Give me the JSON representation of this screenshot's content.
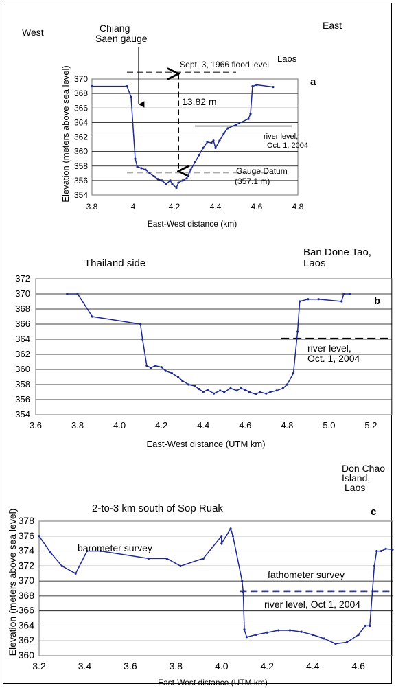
{
  "chart_data": [
    {
      "panel_letter": "a",
      "type": "line",
      "xlabel": "East-West distance (km)",
      "ylabel": "Elevation (meters above sea level)",
      "xlim": [
        3.8,
        4.8
      ],
      "ylim": [
        354,
        370
      ],
      "xticks": [
        "3.8",
        "4",
        "4.2",
        "4.4",
        "4.6",
        "4.8"
      ],
      "yticks": [
        "354",
        "356",
        "358",
        "360",
        "362",
        "364",
        "366",
        "368",
        "370"
      ],
      "annotations": {
        "west": "West",
        "east": "East",
        "gauge": "Chiang\nSaen gauge",
        "flood": "Sept. 3, 1966 flood level",
        "laos": "Laos",
        "diff": "13.82 m",
        "river": "river level,\nOct. 1, 2004",
        "datum": "Gauge Datum\n(357.1 m)"
      },
      "reference_lines": {
        "flood_level": 370.9,
        "river_level": 363.5,
        "gauge_datum": 357.1
      },
      "series": [
        {
          "x": [
            3.8,
            3.97,
            3.99,
            4.01,
            4.02,
            4.04,
            4.06,
            4.08,
            4.1,
            4.12,
            4.14,
            4.16,
            4.18,
            4.19,
            4.21,
            4.22,
            4.24,
            4.26,
            4.28,
            4.3,
            4.32,
            4.34,
            4.36,
            4.38,
            4.39,
            4.4,
            4.42,
            4.44,
            4.46,
            4.5,
            4.56,
            4.57,
            4.58,
            4.6,
            4.68
          ],
          "y": [
            369.0,
            369.0,
            367.5,
            359.0,
            357.9,
            357.7,
            357.5,
            357.0,
            356.6,
            356.2,
            356.0,
            355.5,
            356.0,
            355.5,
            355.0,
            355.7,
            356.0,
            356.3,
            357.5,
            358.5,
            359.5,
            360.5,
            361.3,
            361.2,
            361.5,
            360.5,
            361.5,
            362.5,
            363.2,
            363.7,
            364.5,
            365.2,
            369.0,
            369.2,
            368.9
          ]
        }
      ]
    },
    {
      "panel_letter": "b",
      "type": "line",
      "xlabel": "East-West distance (UTM km)",
      "ylabel": "",
      "xlim": [
        3.6,
        5.3
      ],
      "ylim": [
        354,
        372
      ],
      "xticks": [
        "3.6",
        "3.8",
        "4.0",
        "4.2",
        "4.4",
        "4.6",
        "4.8",
        "5.0",
        "5.2"
      ],
      "yticks": [
        "354",
        "356",
        "358",
        "360",
        "362",
        "364",
        "366",
        "368",
        "370",
        "372"
      ],
      "annotations": {
        "thailand": "Thailand side",
        "bandone": "Ban Done Tao,\nLaos",
        "river": "river level,\nOct. 1, 2004"
      },
      "reference_lines": {
        "river_level": 364.1
      },
      "series": [
        {
          "x": [
            3.75,
            3.8,
            3.87,
            4.1,
            4.11,
            4.13,
            4.15,
            4.17,
            4.2,
            4.22,
            4.25,
            4.28,
            4.3,
            4.33,
            4.36,
            4.38,
            4.4,
            4.42,
            4.45,
            4.48,
            4.5,
            4.53,
            4.56,
            4.58,
            4.6,
            4.62,
            4.65,
            4.67,
            4.7,
            4.72,
            4.75,
            4.78,
            4.8,
            4.83,
            4.85,
            4.86,
            4.9,
            4.95,
            5.06,
            5.07,
            5.1
          ],
          "y": [
            370.0,
            370.0,
            367.0,
            366.0,
            364.0,
            360.5,
            360.2,
            360.5,
            360.3,
            359.8,
            359.5,
            359.0,
            358.5,
            358.0,
            357.8,
            357.4,
            357.0,
            357.3,
            356.8,
            357.2,
            357.0,
            357.5,
            357.2,
            357.5,
            357.3,
            357.0,
            356.7,
            357.0,
            356.8,
            357.0,
            357.2,
            357.5,
            358.0,
            359.5,
            365.0,
            369.0,
            369.3,
            369.3,
            369.0,
            370.0,
            370.0
          ]
        }
      ]
    },
    {
      "panel_letter": "c",
      "type": "line",
      "title": "2-to-3 km south of Sop Ruak",
      "xlabel": "East-West distance (UTM km)",
      "ylabel": "Elevation (meters above sea level)",
      "xlim": [
        3.2,
        4.75
      ],
      "ylim": [
        360,
        378
      ],
      "xticks": [
        "3.2",
        "3.4",
        "3.6",
        "3.8",
        "4.0",
        "4.2",
        "4.4",
        "4.6"
      ],
      "yticks": [
        "360",
        "362",
        "364",
        "366",
        "368",
        "370",
        "372",
        "374",
        "376",
        "378"
      ],
      "annotations": {
        "donchao": "Don Chao\nIsland,\nLaos",
        "barometer": "barometer survey",
        "fathometer": "fathometer survey",
        "river": "river level, Oct 1, 2004"
      },
      "reference_lines": {
        "river_level": 368.6
      },
      "series": [
        {
          "x": [
            3.2,
            3.25,
            3.3,
            3.36,
            3.41,
            3.47,
            3.68,
            3.76,
            3.82,
            3.92,
            4.0,
            4.0,
            4.04,
            4.05,
            4.09,
            4.095,
            4.1,
            4.11,
            4.15,
            4.2,
            4.25,
            4.3,
            4.35,
            4.4,
            4.45,
            4.5,
            4.55,
            4.6,
            4.63,
            4.65,
            4.67,
            4.68,
            4.7,
            4.72,
            4.75
          ],
          "y": [
            376.0,
            373.8,
            372.0,
            371.0,
            374.0,
            374.0,
            373.0,
            373.0,
            372.0,
            373.0,
            376.0,
            375.0,
            377.0,
            376.0,
            370.0,
            368.5,
            363.5,
            362.5,
            362.8,
            363.1,
            363.4,
            363.4,
            363.2,
            362.8,
            362.3,
            361.6,
            361.8,
            362.8,
            364.0,
            364.0,
            372.0,
            374.0,
            374.0,
            374.3,
            374.2
          ]
        }
      ]
    }
  ],
  "colors": {
    "series": "#1f2a8f",
    "flood_dash": "#555555",
    "gray_ref": "#aaaaaa",
    "black": "#000000"
  }
}
